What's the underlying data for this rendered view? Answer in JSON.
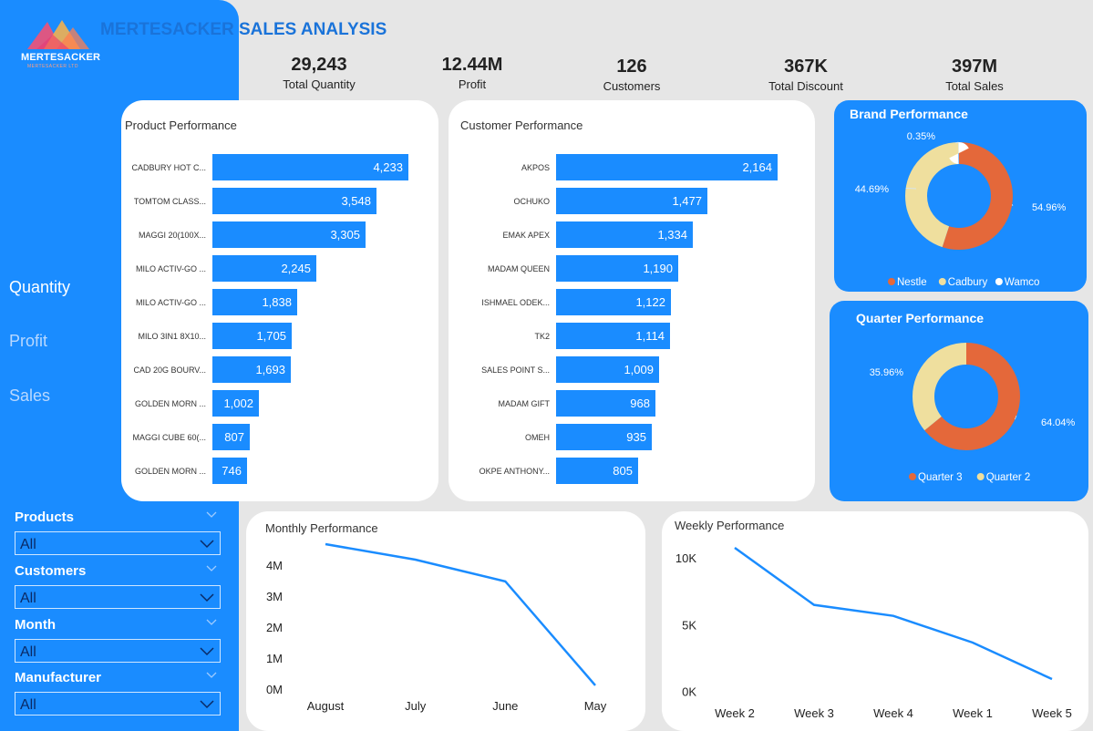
{
  "logo": {
    "name": "MERTESACKER",
    "tagline": "MERTESACKER LTD"
  },
  "title": "MERTESACKER SALES ANALYSIS",
  "kpis": [
    {
      "value": "29,243",
      "label": "Total Quantity"
    },
    {
      "value": "12.44M",
      "label": "Profit"
    },
    {
      "value": "126",
      "label": "Customers"
    },
    {
      "value": "367K",
      "label": "Total Discount"
    },
    {
      "value": "397M",
      "label": "Total Sales"
    }
  ],
  "nav": {
    "quantity": "Quantity",
    "profit": "Profit",
    "sales": "Sales",
    "active": "Quantity"
  },
  "filters": [
    {
      "label": "Products",
      "value": "All"
    },
    {
      "label": "Customers",
      "value": "All"
    },
    {
      "label": "Month",
      "value": "All"
    },
    {
      "label": "Manufacturer",
      "value": "All"
    }
  ],
  "colors": {
    "primary": "#1a8cff",
    "orange": "#e4683a",
    "cream": "#efdf9e",
    "white": "#ffffff",
    "title": "#1a73d9"
  },
  "chart_data": [
    {
      "type": "bar",
      "title": "Product Performance",
      "orientation": "horizontal",
      "categories": [
        "CADBURY HOT C...",
        "TOMTOM CLASS...",
        "MAGGI 20(100X...",
        "MILO ACTIV-GO ...",
        "MILO ACTIV-GO ...",
        "MILO 3IN1 8X10...",
        "CAD 20G BOURV...",
        "GOLDEN MORN ...",
        "MAGGI CUBE 60(...",
        "GOLDEN MORN ..."
      ],
      "values": [
        4233,
        3548,
        3305,
        2245,
        1838,
        1705,
        1693,
        1002,
        807,
        746
      ],
      "labels": [
        "4,233",
        "3,548",
        "3,305",
        "2,245",
        "1,838",
        "1,705",
        "1,693",
        "1,002",
        "807",
        "746"
      ]
    },
    {
      "type": "bar",
      "title": "Customer Performance",
      "orientation": "horizontal",
      "categories": [
        "AKPOS",
        "OCHUKO",
        "EMAK APEX",
        "MADAM QUEEN",
        "ISHMAEL ODEK...",
        "TK2",
        "SALES POINT S...",
        "MADAM GIFT",
        "OMEH",
        "OKPE ANTHONY..."
      ],
      "values": [
        2164,
        1477,
        1334,
        1190,
        1122,
        1114,
        1009,
        968,
        935,
        805
      ],
      "labels": [
        "2,164",
        "1,477",
        "1,334",
        "1,190",
        "1,122",
        "1,114",
        "1,009",
        "968",
        "935",
        "805"
      ]
    },
    {
      "type": "pie",
      "donut": true,
      "title": "Brand Performance",
      "categories": [
        "Nestle",
        "Cadbury",
        "Wamco"
      ],
      "values": [
        54.96,
        44.69,
        0.35
      ],
      "labels": [
        "54.96%",
        "44.69%",
        "0.35%"
      ],
      "colors": [
        "#e4683a",
        "#efdf9e",
        "#ffffff"
      ],
      "legend": "bottom"
    },
    {
      "type": "pie",
      "donut": true,
      "title": "Quarter Performance",
      "categories": [
        "Quarter 3",
        "Quarter 2"
      ],
      "values": [
        64.04,
        35.96
      ],
      "labels": [
        "64.04%",
        "35.96%"
      ],
      "colors": [
        "#e4683a",
        "#efdf9e"
      ],
      "legend": "bottom"
    },
    {
      "type": "line",
      "title": "Monthly Performance",
      "categories": [
        "August",
        "July",
        "June",
        "May"
      ],
      "values": [
        4700000,
        4200000,
        3500000,
        150000
      ],
      "yticks": [
        "0M",
        "1M",
        "2M",
        "3M",
        "4M"
      ],
      "ylim": [
        0,
        4700000
      ]
    },
    {
      "type": "line",
      "title": "Weekly Performance",
      "categories": [
        "Week 2",
        "Week 3",
        "Week 4",
        "Week 1",
        "Week 5"
      ],
      "values": [
        11700,
        7000,
        6100,
        3900,
        900
      ],
      "yticks": [
        "0K",
        "5K",
        "10K"
      ],
      "ylim": [
        0,
        11700
      ]
    }
  ]
}
